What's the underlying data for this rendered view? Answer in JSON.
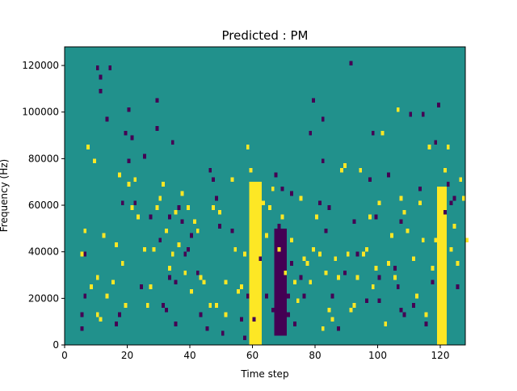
{
  "chart_data": {
    "type": "heatmap",
    "title": "Predicted : PM",
    "xlabel": "Time step",
    "ylabel": "Frequency (Hz)",
    "xlim": [
      0,
      128
    ],
    "ylim": [
      0,
      128000
    ],
    "x_ticks": [
      0,
      20,
      40,
      60,
      80,
      100,
      120
    ],
    "y_ticks": [
      0,
      20000,
      40000,
      60000,
      80000,
      100000,
      120000
    ],
    "x_tick_labels": [
      "0",
      "20",
      "40",
      "60",
      "80",
      "100",
      "120"
    ],
    "y_tick_labels": [
      "0",
      "20000",
      "40000",
      "60000",
      "80000",
      "100000",
      "120000"
    ],
    "grid": false,
    "colormap": {
      "low": "#440154",
      "mid": "#21918c",
      "high": "#fde725"
    },
    "background_value": 0,
    "cell_values": {
      "low": -1,
      "high": 1
    },
    "low_cells": [
      [
        5,
        12000
      ],
      [
        5,
        6000
      ],
      [
        6,
        38000
      ],
      [
        6,
        20000
      ],
      [
        10,
        118000
      ],
      [
        11,
        114000
      ],
      [
        11,
        108000
      ],
      [
        13,
        96000
      ],
      [
        14,
        118000
      ],
      [
        16,
        8000
      ],
      [
        17,
        12000
      ],
      [
        18,
        60000
      ],
      [
        19,
        90000
      ],
      [
        20,
        100000
      ],
      [
        20,
        78000
      ],
      [
        21,
        88000
      ],
      [
        22,
        60000
      ],
      [
        24,
        24000
      ],
      [
        25,
        80000
      ],
      [
        27,
        54000
      ],
      [
        29,
        104000
      ],
      [
        29,
        92000
      ],
      [
        30,
        44000
      ],
      [
        31,
        16000
      ],
      [
        32,
        14000
      ],
      [
        33,
        28000
      ],
      [
        33,
        54000
      ],
      [
        34,
        86000
      ],
      [
        35,
        26000
      ],
      [
        35,
        8000
      ],
      [
        36,
        58000
      ],
      [
        37,
        52000
      ],
      [
        38,
        38000
      ],
      [
        39,
        40000
      ],
      [
        40,
        46000
      ],
      [
        42,
        30000
      ],
      [
        43,
        12000
      ],
      [
        45,
        6000
      ],
      [
        46,
        74000
      ],
      [
        47,
        70000
      ],
      [
        48,
        62000
      ],
      [
        49,
        50000
      ],
      [
        50,
        4000
      ],
      [
        53,
        48000
      ],
      [
        56,
        10000
      ],
      [
        57,
        2000
      ],
      [
        58,
        20000
      ],
      [
        60,
        10000
      ],
      [
        62,
        36000
      ],
      [
        64,
        20000
      ],
      [
        66,
        14000
      ],
      [
        67,
        72000
      ],
      [
        67,
        36000
      ],
      [
        67,
        22000
      ],
      [
        68,
        50000
      ],
      [
        68,
        14000
      ],
      [
        68,
        10000
      ],
      [
        69,
        44000
      ],
      [
        69,
        66000
      ],
      [
        69,
        40000
      ],
      [
        70,
        4000
      ],
      [
        70,
        30000
      ],
      [
        71,
        20000
      ],
      [
        71,
        12000
      ],
      [
        72,
        64000
      ],
      [
        72,
        34000
      ],
      [
        73,
        8000
      ],
      [
        75,
        28000
      ],
      [
        76,
        20000
      ],
      [
        78,
        90000
      ],
      [
        79,
        104000
      ],
      [
        81,
        60000
      ],
      [
        82,
        78000
      ],
      [
        82,
        96000
      ],
      [
        83,
        48000
      ],
      [
        84,
        58000
      ],
      [
        85,
        20000
      ],
      [
        87,
        6000
      ],
      [
        88,
        74000
      ],
      [
        89,
        30000
      ],
      [
        91,
        120000
      ],
      [
        92,
        52000
      ],
      [
        93,
        38000
      ],
      [
        96,
        18000
      ],
      [
        97,
        70000
      ],
      [
        98,
        90000
      ],
      [
        99,
        54000
      ],
      [
        100,
        28000
      ],
      [
        100,
        18000
      ],
      [
        103,
        72000
      ],
      [
        105,
        32000
      ],
      [
        106,
        24000
      ],
      [
        107,
        14000
      ],
      [
        107,
        52000
      ],
      [
        108,
        12000
      ],
      [
        110,
        98000
      ],
      [
        111,
        16000
      ],
      [
        113,
        66000
      ],
      [
        114,
        98000
      ],
      [
        115,
        8000
      ],
      [
        117,
        26000
      ],
      [
        118,
        86000
      ],
      [
        119,
        102000
      ],
      [
        121,
        56000
      ],
      [
        122,
        68000
      ],
      [
        123,
        60000
      ],
      [
        124,
        62000
      ],
      [
        125,
        24000
      ]
    ],
    "high_cells": [
      [
        5,
        38000
      ],
      [
        6,
        48000
      ],
      [
        7,
        84000
      ],
      [
        8,
        24000
      ],
      [
        9,
        78000
      ],
      [
        10,
        28000
      ],
      [
        10,
        12000
      ],
      [
        11,
        10000
      ],
      [
        12,
        46000
      ],
      [
        13,
        20000
      ],
      [
        15,
        26000
      ],
      [
        16,
        42000
      ],
      [
        17,
        72000
      ],
      [
        18,
        34000
      ],
      [
        19,
        16000
      ],
      [
        20,
        68000
      ],
      [
        21,
        58000
      ],
      [
        22,
        70000
      ],
      [
        23,
        54000
      ],
      [
        25,
        40000
      ],
      [
        26,
        16000
      ],
      [
        27,
        24000
      ],
      [
        28,
        40000
      ],
      [
        29,
        58000
      ],
      [
        30,
        62000
      ],
      [
        31,
        68000
      ],
      [
        32,
        48000
      ],
      [
        33,
        32000
      ],
      [
        34,
        38000
      ],
      [
        35,
        56000
      ],
      [
        36,
        42000
      ],
      [
        37,
        64000
      ],
      [
        38,
        30000
      ],
      [
        39,
        58000
      ],
      [
        40,
        22000
      ],
      [
        41,
        52000
      ],
      [
        42,
        48000
      ],
      [
        43,
        28000
      ],
      [
        44,
        26000
      ],
      [
        46,
        16000
      ],
      [
        47,
        58000
      ],
      [
        48,
        16000
      ],
      [
        49,
        56000
      ],
      [
        51,
        12000
      ],
      [
        51,
        26000
      ],
      [
        53,
        70000
      ],
      [
        54,
        40000
      ],
      [
        55,
        22000
      ],
      [
        56,
        24000
      ],
      [
        57,
        38000
      ],
      [
        58,
        84000
      ],
      [
        59,
        74000
      ],
      [
        60,
        64000
      ],
      [
        61,
        62000
      ],
      [
        62,
        52000
      ],
      [
        63,
        60000
      ],
      [
        64,
        46000
      ],
      [
        65,
        58000
      ],
      [
        66,
        66000
      ],
      [
        68,
        40000
      ],
      [
        69,
        54000
      ],
      [
        70,
        30000
      ],
      [
        72,
        44000
      ],
      [
        73,
        26000
      ],
      [
        74,
        18000
      ],
      [
        75,
        62000
      ],
      [
        76,
        36000
      ],
      [
        77,
        34000
      ],
      [
        78,
        26000
      ],
      [
        79,
        40000
      ],
      [
        80,
        54000
      ],
      [
        81,
        38000
      ],
      [
        82,
        6000
      ],
      [
        83,
        30000
      ],
      [
        84,
        14000
      ],
      [
        85,
        10000
      ],
      [
        86,
        36000
      ],
      [
        87,
        28000
      ],
      [
        88,
        74000
      ],
      [
        89,
        76000
      ],
      [
        90,
        38000
      ],
      [
        91,
        14000
      ],
      [
        92,
        16000
      ],
      [
        93,
        28000
      ],
      [
        94,
        74000
      ],
      [
        95,
        38000
      ],
      [
        96,
        40000
      ],
      [
        97,
        54000
      ],
      [
        98,
        24000
      ],
      [
        99,
        32000
      ],
      [
        100,
        60000
      ],
      [
        101,
        90000
      ],
      [
        102,
        8000
      ],
      [
        103,
        34000
      ],
      [
        104,
        46000
      ],
      [
        105,
        28000
      ],
      [
        106,
        100000
      ],
      [
        107,
        62000
      ],
      [
        108,
        56000
      ],
      [
        109,
        48000
      ],
      [
        111,
        36000
      ],
      [
        112,
        20000
      ],
      [
        113,
        60000
      ],
      [
        114,
        44000
      ],
      [
        115,
        12000
      ],
      [
        116,
        84000
      ],
      [
        117,
        32000
      ],
      [
        118,
        44000
      ],
      [
        119,
        22000
      ],
      [
        120,
        46000
      ],
      [
        121,
        74000
      ],
      [
        122,
        84000
      ],
      [
        123,
        40000
      ],
      [
        124,
        50000
      ],
      [
        125,
        34000
      ],
      [
        126,
        70000
      ],
      [
        127,
        62000
      ],
      [
        128,
        44000
      ]
    ],
    "high_vertical_bands": [
      {
        "x_range": [
          59,
          63
        ],
        "y_range": [
          0,
          70000
        ]
      },
      {
        "x_range": [
          119,
          122
        ],
        "y_range": [
          0,
          68000
        ]
      }
    ],
    "low_vertical_bands": [
      {
        "x_range": [
          67,
          71
        ],
        "y_range": [
          4000,
          50000
        ]
      }
    ]
  }
}
